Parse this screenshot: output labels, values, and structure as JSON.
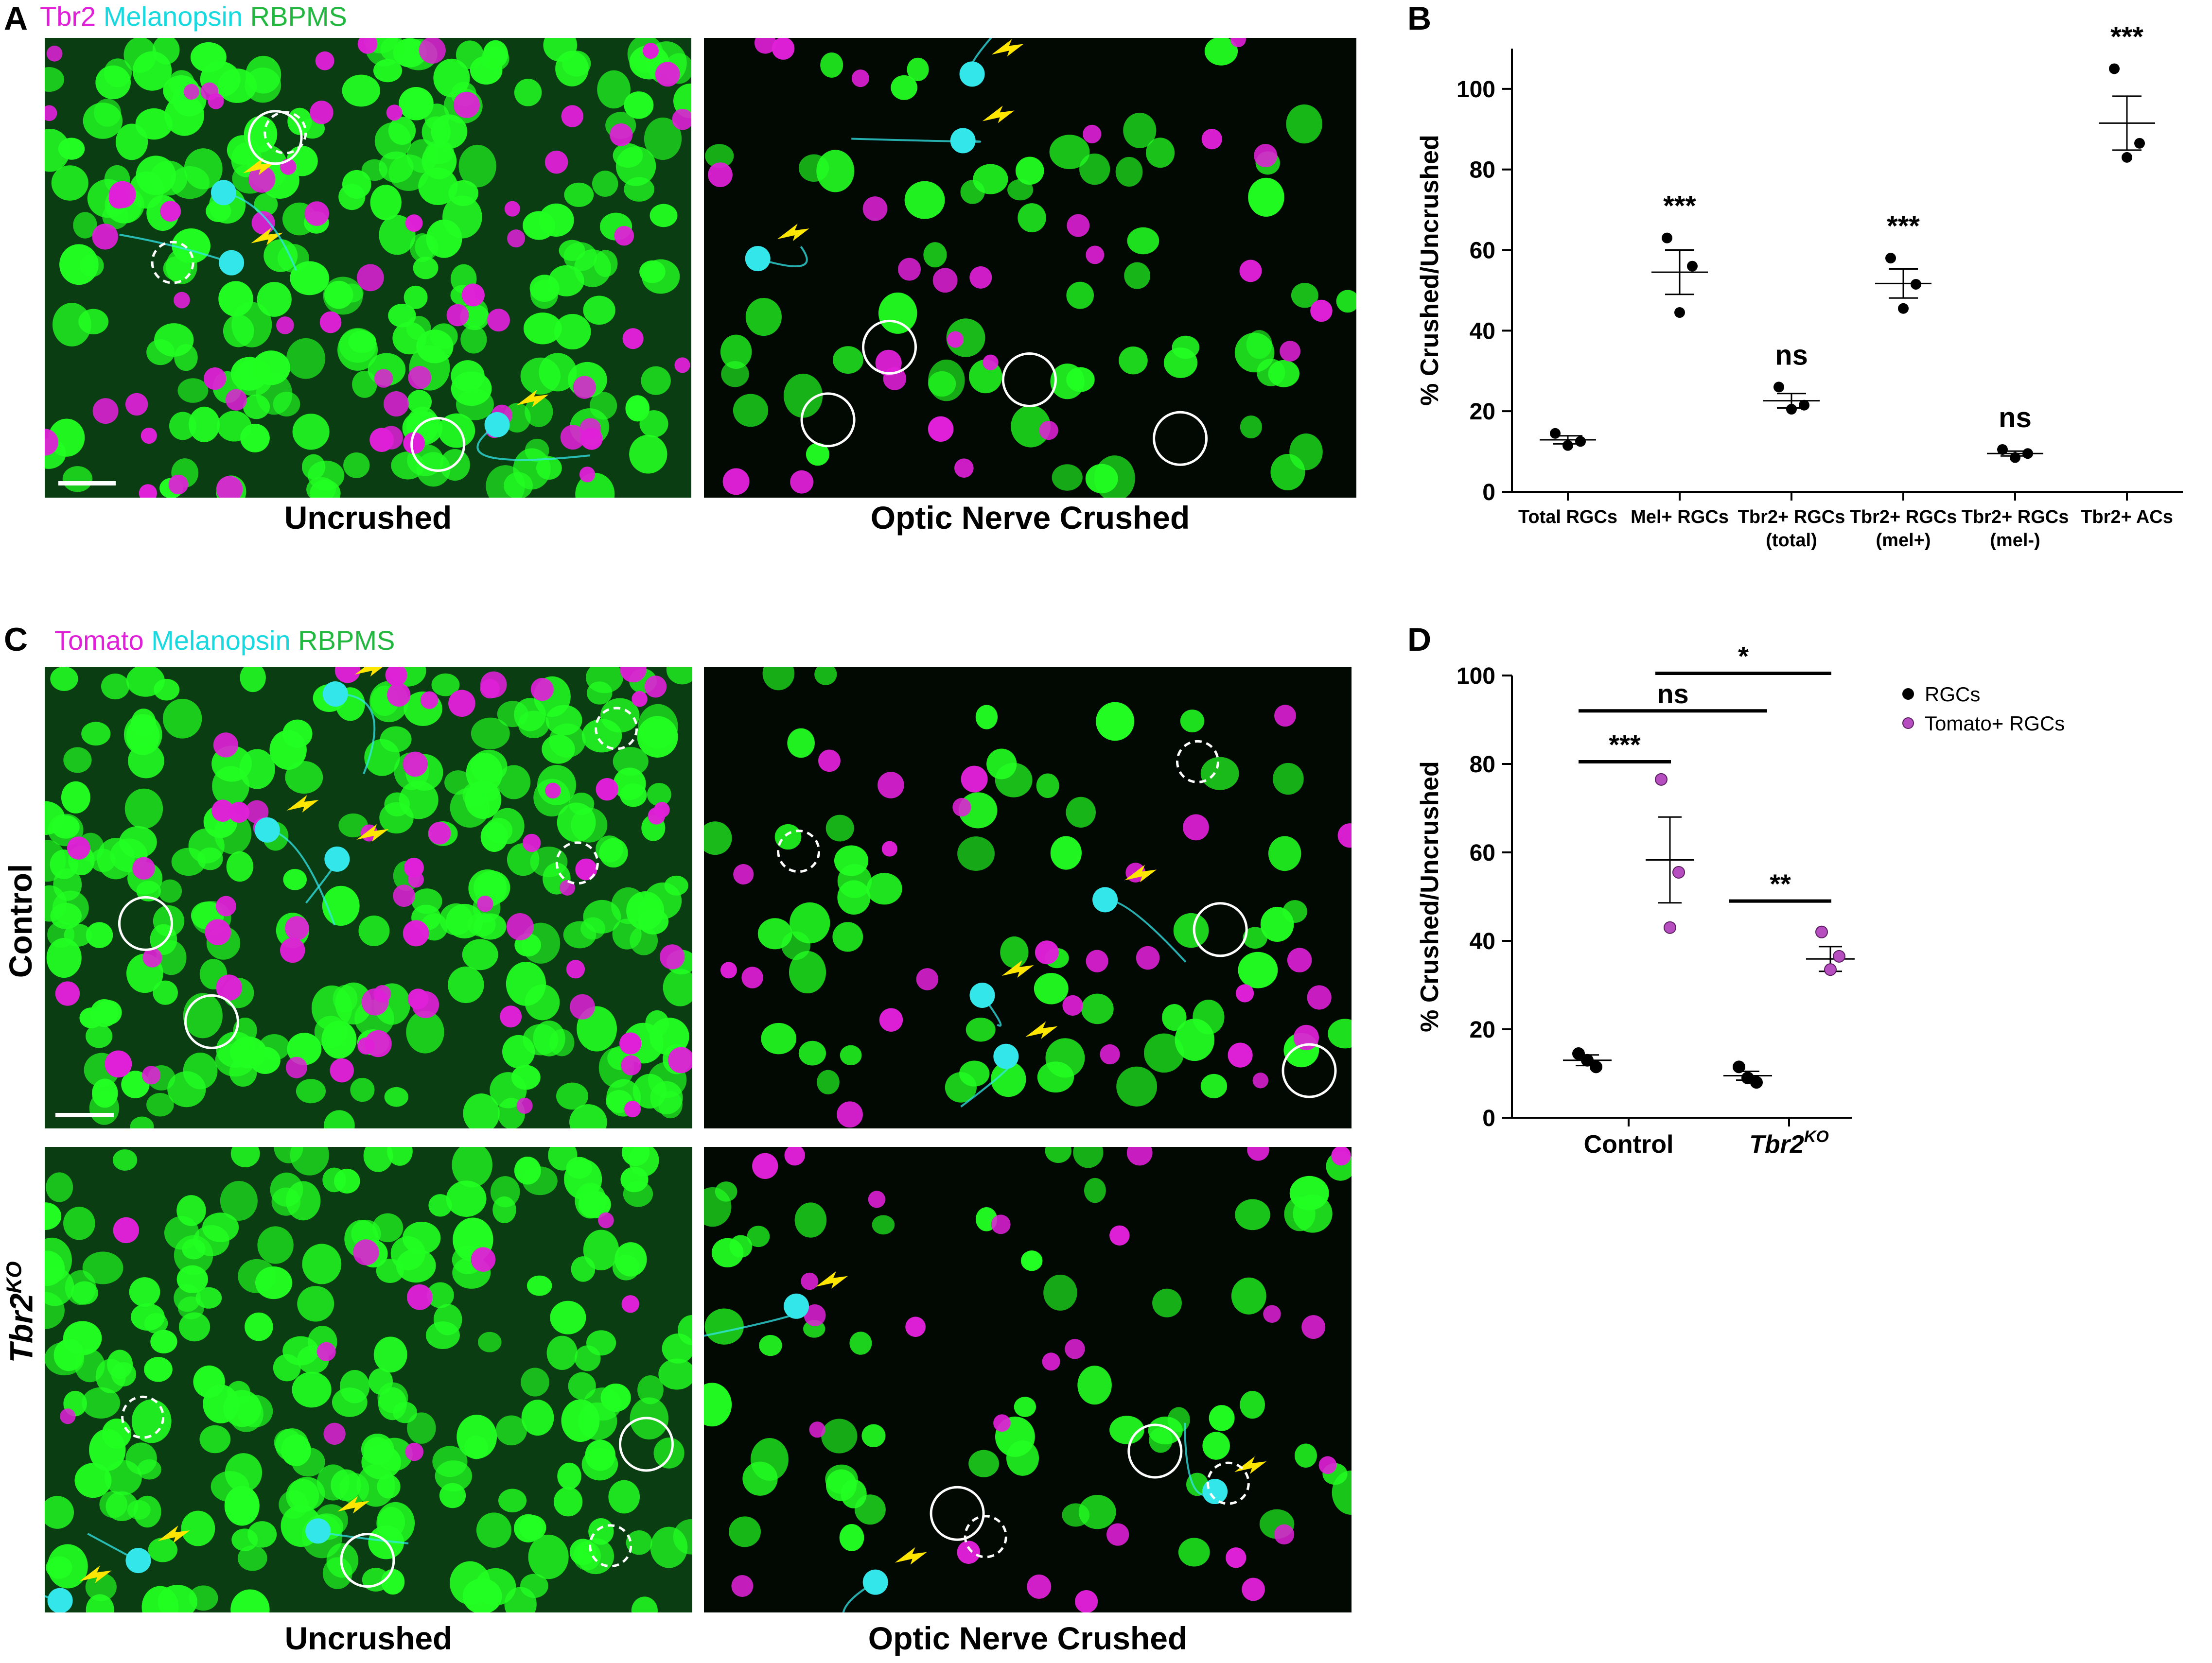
{
  "panels": {
    "A": {
      "letter": "A",
      "stain": [
        {
          "text": "Tbr2",
          "color": "#e020d8"
        },
        {
          "text": " Melanopsin",
          "color": "#18d8e0"
        },
        {
          "text": " RBPMS",
          "color": "#22b840"
        }
      ],
      "captions": {
        "left": "Uncrushed",
        "right": "Optic Nerve Crushed"
      }
    },
    "B": {
      "letter": "B"
    },
    "C": {
      "letter": "C",
      "stain": [
        {
          "text": "Tomato",
          "color": "#e020d8"
        },
        {
          "text": " Melanopsin",
          "color": "#18d8e0"
        },
        {
          "text": " RBPMS",
          "color": "#22b840"
        }
      ],
      "rows": {
        "top": "Control",
        "bottom_main": "Tbr2",
        "bottom_sup": "KO"
      },
      "captions": {
        "left": "Uncrushed",
        "right": "Optic Nerve Crushed"
      }
    },
    "D": {
      "letter": "D"
    }
  },
  "colors": {
    "tbr2_magenta": "#e020d8",
    "rbpms_green": "#22ff22",
    "melanopsin_cyan": "#33e6ea",
    "arrow_yellow": "#ffe600",
    "tomato_point": "#b64ec0"
  },
  "chart_data": [
    {
      "type": "scatter",
      "panel": "B",
      "ylabel": "% Crushed/Uncrushed",
      "ylim": [
        0,
        110
      ],
      "yticks": [
        0,
        20,
        40,
        60,
        80,
        100
      ],
      "categories": [
        {
          "line1": "Total RGCs",
          "line2": ""
        },
        {
          "line1": "Mel+ RGCs",
          "line2": ""
        },
        {
          "line1": "Tbr2+ RGCs",
          "line2": "(total)"
        },
        {
          "line1": "Tbr2+ RGCs",
          "line2": "(mel+)"
        },
        {
          "line1": "Tbr2+ RGCs",
          "line2": "(mel-)"
        },
        {
          "line1": "Tbr2+ ACs",
          "line2": ""
        }
      ],
      "points": [
        [
          14.5,
          11.5,
          12.5
        ],
        [
          63,
          44.5,
          56
        ],
        [
          26,
          20.5,
          21.5
        ],
        [
          58,
          45.5,
          51.5
        ],
        [
          10.5,
          8.5,
          9.5
        ],
        [
          105,
          83,
          86.5
        ]
      ],
      "mean": [
        12.9,
        54.5,
        22.6,
        51.7,
        9.5,
        91.5
      ],
      "sem": [
        1.0,
        5.5,
        1.8,
        3.6,
        0.6,
        6.7
      ],
      "significance": [
        "",
        "***",
        "ns",
        "***",
        "ns",
        "***"
      ],
      "grid": false
    },
    {
      "type": "scatter",
      "panel": "D",
      "ylabel": "% Crushed/Uncrushed",
      "ylim": [
        0,
        100
      ],
      "yticks": [
        0,
        20,
        40,
        60,
        80,
        100
      ],
      "categories": [
        {
          "main": "Control",
          "sup": ""
        },
        {
          "main": "Tbr2",
          "sup": "KO"
        }
      ],
      "series": [
        {
          "name": "RGCs",
          "color": "#000000",
          "points": [
            [
              14.5,
              11.5,
              13.0
            ],
            [
              11.5,
              8.0,
              9.0
            ]
          ],
          "mean": [
            13.0,
            9.5
          ],
          "sem": [
            1.2,
            1.0
          ]
        },
        {
          "name": "Tomato+ RGCs",
          "color": "#b64ec0",
          "points": [
            [
              76.5,
              55.5,
              43.0
            ],
            [
              42.0,
              36.5,
              33.5
            ]
          ],
          "mean": [
            58.3,
            35.9
          ],
          "sem": [
            9.7,
            2.8
          ]
        }
      ],
      "comparisons": [
        {
          "label": "***",
          "level": "within-control"
        },
        {
          "label": "**",
          "level": "within-tbr2ko"
        },
        {
          "label": "ns",
          "level": "rgcs-control-vs-tbr2ko"
        },
        {
          "label": "*",
          "level": "tomato-control-vs-tbr2ko"
        }
      ],
      "legend": "top-right",
      "grid": false
    }
  ]
}
